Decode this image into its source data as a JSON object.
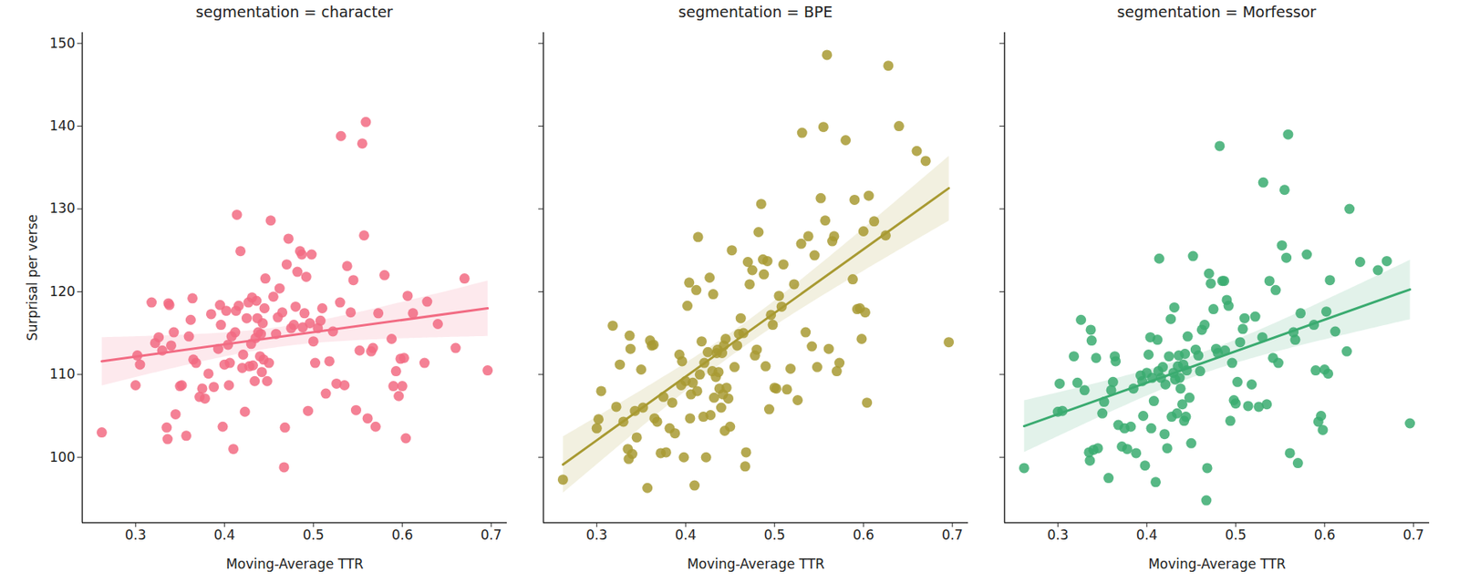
{
  "chart_data": [
    {
      "type": "regplot",
      "title": "segmentation = character",
      "xlabel": "Moving-Average TTR",
      "ylabel": "Surprisal per verse",
      "color": "#f26b83",
      "marker": "circle",
      "grid": false,
      "xlim": [
        0.24,
        0.718
      ],
      "xticks": [
        0.3,
        0.4,
        0.5,
        0.6,
        0.7
      ],
      "ylim": [
        92.1,
        151.3
      ],
      "yticks": [
        100,
        110,
        120,
        130,
        140,
        150
      ],
      "x": [
        0.262,
        0.3,
        0.302,
        0.305,
        0.318,
        0.322,
        0.326,
        0.33,
        0.335,
        0.336,
        0.337,
        0.338,
        0.34,
        0.343,
        0.345,
        0.35,
        0.352,
        0.357,
        0.36,
        0.362,
        0.364,
        0.365,
        0.368,
        0.372,
        0.375,
        0.378,
        0.382,
        0.385,
        0.388,
        0.393,
        0.395,
        0.396,
        0.398,
        0.4,
        0.402,
        0.404,
        0.405,
        0.406,
        0.408,
        0.41,
        0.412,
        0.413,
        0.414,
        0.416,
        0.418,
        0.42,
        0.421,
        0.423,
        0.425,
        0.427,
        0.428,
        0.43,
        0.431,
        0.432,
        0.434,
        0.435,
        0.436,
        0.437,
        0.438,
        0.44,
        0.441,
        0.442,
        0.443,
        0.444,
        0.445,
        0.446,
        0.448,
        0.45,
        0.452,
        0.455,
        0.458,
        0.46,
        0.462,
        0.465,
        0.467,
        0.468,
        0.47,
        0.472,
        0.475,
        0.478,
        0.48,
        0.482,
        0.485,
        0.487,
        0.488,
        0.49,
        0.492,
        0.494,
        0.496,
        0.498,
        0.5,
        0.502,
        0.505,
        0.508,
        0.51,
        0.514,
        0.518,
        0.522,
        0.526,
        0.53,
        0.531,
        0.535,
        0.538,
        0.542,
        0.545,
        0.548,
        0.552,
        0.555,
        0.557,
        0.559,
        0.561,
        0.565,
        0.567,
        0.57,
        0.573,
        0.58,
        0.588,
        0.59,
        0.593,
        0.596,
        0.598,
        0.6,
        0.602,
        0.604,
        0.606,
        0.612,
        0.625,
        0.628,
        0.64,
        0.66,
        0.67,
        0.696
      ],
      "values": [
        103.0,
        108.7,
        112.3,
        111.2,
        118.7,
        113.8,
        114.5,
        112.9,
        103.6,
        102.2,
        118.6,
        118.4,
        113.5,
        115.1,
        105.2,
        108.6,
        108.7,
        102.6,
        114.6,
        116.6,
        119.2,
        111.8,
        111.4,
        107.3,
        108.3,
        107.1,
        110.1,
        117.3,
        108.5,
        113.1,
        118.4,
        116.0,
        103.7,
        111.2,
        117.7,
        113.6,
        108.7,
        111.4,
        114.6,
        101.0,
        115.1,
        117.7,
        129.3,
        118.3,
        124.9,
        110.8,
        112.4,
        105.5,
        116.8,
        118.7,
        111.0,
        113.7,
        119.3,
        111.1,
        109.2,
        114.4,
        118.9,
        116.8,
        115.1,
        112.2,
        114.9,
        110.3,
        116.2,
        111.8,
        118.0,
        121.6,
        109.2,
        111.4,
        128.6,
        119.4,
        114.9,
        116.9,
        120.4,
        117.5,
        98.8,
        103.6,
        123.3,
        126.4,
        115.6,
        116.0,
        118.2,
        122.4,
        124.9,
        124.5,
        115.7,
        117.4,
        121.8,
        105.6,
        116.2,
        124.5,
        114.0,
        111.4,
        115.6,
        116.5,
        118.0,
        107.7,
        111.6,
        115.2,
        108.9,
        118.7,
        138.8,
        108.7,
        123.1,
        117.5,
        121.4,
        105.7,
        112.9,
        137.9,
        126.8,
        140.5,
        104.7,
        112.8,
        113.2,
        103.7,
        117.4,
        122.0,
        114.3,
        108.6,
        110.4,
        107.4,
        111.9,
        108.6,
        112.0,
        102.3,
        119.5,
        117.4,
        111.4,
        118.8,
        116.1,
        113.2,
        121.6,
        110.5
      ]
    },
    {
      "type": "regplot",
      "title": "segmentation = BPE",
      "xlabel": "Moving-Average TTR",
      "color": "#a89a32",
      "marker": "circle",
      "grid": false,
      "tick_labels": "x",
      "xlim": [
        0.24,
        0.718
      ],
      "xticks": [
        0.3,
        0.4,
        0.5,
        0.6,
        0.7
      ],
      "ylim": [
        92.1,
        151.3
      ],
      "yticks": [
        100,
        110,
        120,
        130,
        140,
        150
      ],
      "x": [
        0.262,
        0.3,
        0.302,
        0.305,
        0.318,
        0.322,
        0.326,
        0.33,
        0.335,
        0.336,
        0.337,
        0.338,
        0.34,
        0.343,
        0.345,
        0.35,
        0.352,
        0.357,
        0.36,
        0.362,
        0.364,
        0.365,
        0.368,
        0.372,
        0.375,
        0.378,
        0.382,
        0.385,
        0.388,
        0.393,
        0.395,
        0.396,
        0.398,
        0.4,
        0.402,
        0.404,
        0.405,
        0.406,
        0.408,
        0.41,
        0.412,
        0.413,
        0.414,
        0.416,
        0.418,
        0.42,
        0.421,
        0.423,
        0.425,
        0.427,
        0.428,
        0.43,
        0.431,
        0.432,
        0.434,
        0.435,
        0.436,
        0.437,
        0.438,
        0.44,
        0.441,
        0.442,
        0.443,
        0.444,
        0.445,
        0.446,
        0.448,
        0.45,
        0.452,
        0.455,
        0.458,
        0.46,
        0.462,
        0.465,
        0.467,
        0.468,
        0.47,
        0.472,
        0.475,
        0.478,
        0.48,
        0.482,
        0.485,
        0.487,
        0.488,
        0.49,
        0.492,
        0.494,
        0.496,
        0.498,
        0.5,
        0.502,
        0.505,
        0.508,
        0.51,
        0.514,
        0.518,
        0.522,
        0.526,
        0.53,
        0.531,
        0.535,
        0.538,
        0.542,
        0.545,
        0.548,
        0.552,
        0.555,
        0.557,
        0.559,
        0.561,
        0.565,
        0.567,
        0.57,
        0.573,
        0.58,
        0.588,
        0.59,
        0.593,
        0.596,
        0.598,
        0.6,
        0.602,
        0.604,
        0.606,
        0.612,
        0.625,
        0.628,
        0.64,
        0.66,
        0.67,
        0.696
      ],
      "values": [
        97.3,
        103.5,
        104.6,
        108.0,
        115.9,
        106.1,
        111.2,
        104.3,
        101.0,
        99.8,
        114.7,
        113.1,
        100.4,
        105.6,
        102.4,
        110.6,
        106.0,
        96.3,
        114.1,
        113.5,
        113.6,
        104.7,
        104.3,
        100.5,
        107.3,
        100.6,
        103.5,
        106.6,
        102.9,
        112.4,
        108.7,
        111.6,
        100.0,
        109.2,
        118.3,
        121.1,
        104.7,
        107.6,
        109.0,
        96.6,
        120.2,
        108.0,
        126.6,
        110.0,
        114.0,
        104.9,
        111.4,
        100.0,
        112.7,
        121.7,
        105.1,
        110.4,
        119.7,
        107.2,
        109.7,
        112.6,
        113.0,
        110.3,
        108.3,
        106.0,
        112.6,
        107.6,
        113.5,
        103.2,
        114.3,
        108.4,
        107.1,
        103.7,
        125.0,
        110.9,
        113.5,
        114.9,
        116.8,
        115.0,
        98.9,
        100.6,
        123.6,
        120.9,
        122.6,
        112.3,
        113.0,
        127.2,
        130.6,
        123.9,
        122.1,
        111.0,
        123.7,
        105.8,
        117.2,
        116.0,
        108.4,
        108.3,
        119.5,
        118.2,
        123.3,
        108.2,
        110.7,
        120.9,
        106.9,
        125.8,
        139.2,
        115.1,
        126.7,
        113.4,
        124.4,
        110.9,
        131.3,
        139.9,
        128.6,
        148.6,
        113.1,
        126.1,
        126.7,
        110.4,
        111.4,
        138.3,
        121.5,
        131.1,
        117.9,
        118.0,
        114.3,
        127.3,
        117.5,
        106.6,
        131.6,
        128.5,
        126.8,
        147.3,
        140.0,
        137.0,
        135.8,
        113.9
      ]
    },
    {
      "type": "regplot",
      "title": "segmentation = Morfessor",
      "xlabel": "Moving-Average TTR",
      "color": "#3aab70",
      "marker": "circle",
      "grid": false,
      "tick_labels": "x",
      "xlim": [
        0.24,
        0.718
      ],
      "xticks": [
        0.3,
        0.4,
        0.5,
        0.6,
        0.7
      ],
      "ylim": [
        92.1,
        151.3
      ],
      "yticks": [
        100,
        110,
        120,
        130,
        140,
        150
      ],
      "x": [
        0.262,
        0.3,
        0.302,
        0.305,
        0.318,
        0.322,
        0.326,
        0.33,
        0.335,
        0.336,
        0.337,
        0.338,
        0.34,
        0.343,
        0.345,
        0.35,
        0.352,
        0.357,
        0.36,
        0.362,
        0.364,
        0.365,
        0.368,
        0.372,
        0.375,
        0.378,
        0.382,
        0.385,
        0.388,
        0.393,
        0.395,
        0.396,
        0.398,
        0.4,
        0.402,
        0.404,
        0.405,
        0.406,
        0.408,
        0.41,
        0.412,
        0.413,
        0.414,
        0.416,
        0.418,
        0.42,
        0.421,
        0.423,
        0.425,
        0.427,
        0.428,
        0.43,
        0.431,
        0.432,
        0.434,
        0.435,
        0.436,
        0.437,
        0.438,
        0.44,
        0.441,
        0.442,
        0.443,
        0.444,
        0.445,
        0.446,
        0.448,
        0.45,
        0.452,
        0.455,
        0.458,
        0.46,
        0.462,
        0.465,
        0.467,
        0.468,
        0.47,
        0.472,
        0.475,
        0.478,
        0.48,
        0.482,
        0.485,
        0.487,
        0.488,
        0.49,
        0.492,
        0.494,
        0.496,
        0.498,
        0.5,
        0.502,
        0.505,
        0.508,
        0.51,
        0.514,
        0.518,
        0.522,
        0.526,
        0.53,
        0.531,
        0.535,
        0.538,
        0.542,
        0.545,
        0.548,
        0.552,
        0.555,
        0.557,
        0.559,
        0.561,
        0.565,
        0.567,
        0.57,
        0.573,
        0.58,
        0.588,
        0.59,
        0.593,
        0.596,
        0.598,
        0.6,
        0.602,
        0.604,
        0.606,
        0.612,
        0.625,
        0.628,
        0.64,
        0.66,
        0.67,
        0.696
      ],
      "values": [
        98.7,
        105.5,
        108.9,
        105.6,
        112.2,
        109.0,
        116.6,
        108.1,
        100.6,
        99.6,
        115.4,
        114.1,
        100.9,
        112.0,
        101.1,
        105.3,
        106.7,
        97.5,
        108.1,
        109.1,
        112.2,
        111.6,
        103.9,
        101.3,
        103.5,
        101.0,
        103.7,
        108.3,
        100.5,
        109.9,
        109.2,
        105.0,
        99.0,
        110.2,
        112.4,
        114.5,
        103.5,
        109.6,
        106.8,
        97.0,
        114.2,
        110.4,
        124.0,
        109.6,
        110.9,
        102.8,
        108.8,
        101.1,
        112.2,
        116.7,
        104.9,
        110.2,
        118.1,
        109.4,
        105.3,
        111.0,
        112.3,
        109.6,
        108.3,
        106.4,
        111.2,
        104.4,
        112.5,
        104.9,
        110.5,
        114.6,
        107.2,
        101.7,
        124.3,
        113.0,
        112.3,
        110.4,
        115.4,
        116.0,
        94.8,
        98.7,
        122.2,
        121.0,
        117.9,
        113.1,
        112.6,
        137.6,
        121.3,
        121.3,
        112.9,
        119.0,
        118.3,
        104.4,
        111.4,
        106.9,
        106.5,
        109.1,
        113.9,
        115.5,
        116.8,
        106.2,
        108.8,
        117.0,
        106.1,
        114.5,
        133.2,
        106.4,
        121.3,
        112.0,
        120.2,
        111.4,
        125.6,
        132.3,
        124.1,
        139.0,
        100.5,
        115.1,
        114.2,
        99.3,
        117.4,
        124.5,
        116.0,
        110.5,
        104.3,
        105.0,
        103.3,
        110.6,
        117.6,
        110.1,
        121.4,
        115.2,
        112.8,
        130.0,
        123.6,
        122.6,
        123.7,
        104.1
      ]
    }
  ]
}
